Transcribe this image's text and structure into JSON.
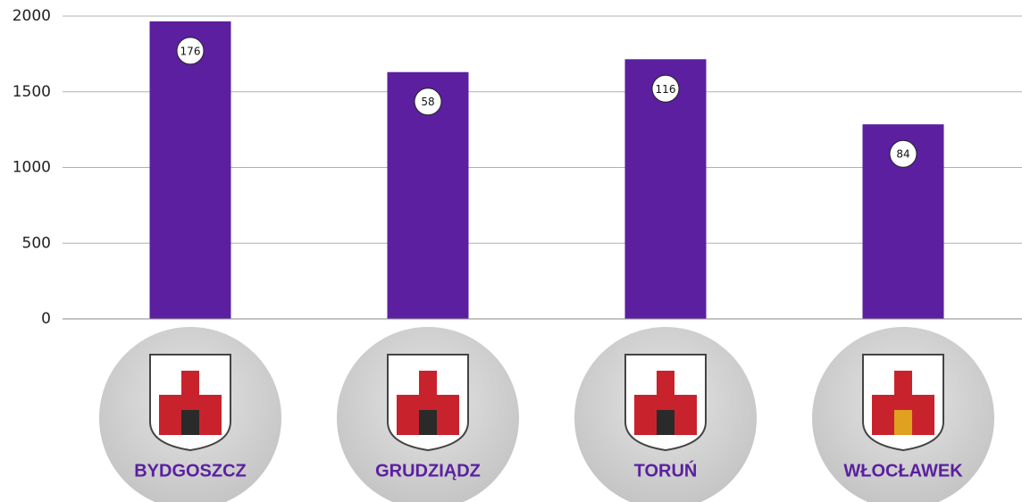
{
  "chart_data": {
    "type": "bar",
    "categories": [
      "BYDGOSZCZ",
      "GRUDZIĄDZ",
      "TORUŃ",
      "WŁOCŁAWEK"
    ],
    "values": [
      1965,
      1630,
      1715,
      1285
    ],
    "badges": [
      176,
      58,
      116,
      84
    ],
    "color": "#5b1fa0",
    "ylim": [
      0,
      2000
    ],
    "yticks": [
      0,
      500,
      1000,
      1500,
      2000
    ],
    "grid": true
  }
}
